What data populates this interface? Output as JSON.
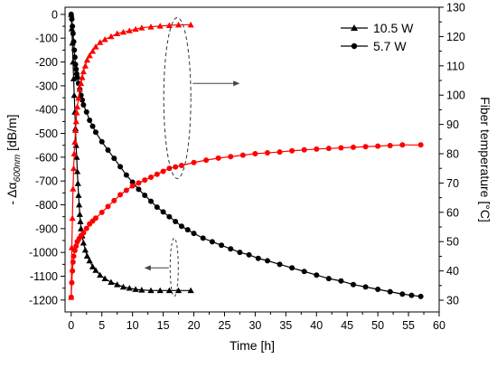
{
  "chart_data": {
    "type": "line",
    "x_axis": {
      "label": "Time [h]",
      "range": [
        -1,
        60
      ],
      "ticks": [
        "0",
        "5",
        "10",
        "15",
        "20",
        "25",
        "30",
        "35",
        "40",
        "45",
        "50",
        "55",
        "60"
      ]
    },
    "y_left_axis": {
      "label_prefix": "- Δα",
      "label_subscript": "600nm",
      "label_suffix": " [dB/m]",
      "range": [
        -1250,
        30
      ],
      "ticks": [
        "0",
        "-100",
        "-200",
        "-300",
        "-400",
        "-500",
        "-600",
        "-700",
        "-800",
        "-900",
        "-1000",
        "-1100",
        "-1200"
      ]
    },
    "y_right_axis": {
      "label": "Fiber temperature [°C]",
      "range": [
        26,
        130
      ],
      "ticks": [
        "30",
        "40",
        "50",
        "60",
        "70",
        "80",
        "90",
        "100",
        "110",
        "120",
        "130"
      ]
    },
    "legend": {
      "placement": "top-right",
      "entries": [
        {
          "label": "10.5 W",
          "marker": "triangle"
        },
        {
          "label": "5.7 W",
          "marker": "circle"
        }
      ]
    },
    "series": [
      {
        "name": "10.5 W",
        "quantity": "loss",
        "axis": "left",
        "color": "#000000",
        "marker": "triangle",
        "points": [
          [
            0,
            0
          ],
          [
            0.1,
            -60
          ],
          [
            0.2,
            -120
          ],
          [
            0.3,
            -200
          ],
          [
            0.4,
            -270
          ],
          [
            0.5,
            -340
          ],
          [
            0.6,
            -410
          ],
          [
            0.7,
            -480
          ],
          [
            0.8,
            -550
          ],
          [
            0.9,
            -600
          ],
          [
            1,
            -660
          ],
          [
            1.1,
            -710
          ],
          [
            1.2,
            -760
          ],
          [
            1.3,
            -800
          ],
          [
            1.4,
            -840
          ],
          [
            1.5,
            -870
          ],
          [
            1.6,
            -900
          ],
          [
            1.8,
            -930
          ],
          [
            2,
            -960
          ],
          [
            2.3,
            -990
          ],
          [
            2.6,
            -1015
          ],
          [
            3,
            -1035
          ],
          [
            3.5,
            -1060
          ],
          [
            4,
            -1075
          ],
          [
            4.7,
            -1095
          ],
          [
            5.5,
            -1110
          ],
          [
            6.5,
            -1125
          ],
          [
            7.5,
            -1135
          ],
          [
            8.5,
            -1145
          ],
          [
            9.5,
            -1150
          ],
          [
            10.5,
            -1155
          ],
          [
            11.5,
            -1158
          ],
          [
            13,
            -1160
          ],
          [
            14.5,
            -1160
          ],
          [
            16,
            -1160
          ],
          [
            17.5,
            -1160
          ],
          [
            19.5,
            -1160
          ]
        ]
      },
      {
        "name": "5.7 W",
        "quantity": "loss",
        "axis": "left",
        "color": "#000000",
        "marker": "circle",
        "points": [
          [
            0,
            0
          ],
          [
            0.1,
            -20
          ],
          [
            0.2,
            -50
          ],
          [
            0.3,
            -80
          ],
          [
            0.4,
            -115
          ],
          [
            0.5,
            -150
          ],
          [
            0.6,
            -180
          ],
          [
            0.7,
            -210
          ],
          [
            0.8,
            -230
          ],
          [
            0.9,
            -250
          ],
          [
            1,
            -265
          ],
          [
            1.2,
            -290
          ],
          [
            1.4,
            -315
          ],
          [
            1.6,
            -340
          ],
          [
            1.8,
            -360
          ],
          [
            2,
            -380
          ],
          [
            2.5,
            -410
          ],
          [
            3,
            -445
          ],
          [
            3.5,
            -470
          ],
          [
            4,
            -495
          ],
          [
            5,
            -535
          ],
          [
            6,
            -570
          ],
          [
            7,
            -605
          ],
          [
            8,
            -640
          ],
          [
            9,
            -675
          ],
          [
            10,
            -705
          ],
          [
            11,
            -735
          ],
          [
            12,
            -760
          ],
          [
            13,
            -785
          ],
          [
            14,
            -810
          ],
          [
            15,
            -830
          ],
          [
            16,
            -850
          ],
          [
            17,
            -870
          ],
          [
            18,
            -890
          ],
          [
            19,
            -905
          ],
          [
            20,
            -920
          ],
          [
            21.5,
            -940
          ],
          [
            23,
            -955
          ],
          [
            24.5,
            -970
          ],
          [
            26,
            -985
          ],
          [
            27.5,
            -1000
          ],
          [
            29,
            -1010
          ],
          [
            30.5,
            -1025
          ],
          [
            32,
            -1035
          ],
          [
            34,
            -1050
          ],
          [
            36,
            -1065
          ],
          [
            38,
            -1080
          ],
          [
            40,
            -1095
          ],
          [
            42,
            -1110
          ],
          [
            44,
            -1120
          ],
          [
            46,
            -1135
          ],
          [
            48,
            -1145
          ],
          [
            50,
            -1155
          ],
          [
            52,
            -1165
          ],
          [
            54,
            -1175
          ],
          [
            55.5,
            -1180
          ],
          [
            57,
            -1185
          ]
        ]
      },
      {
        "name": "10.5 W",
        "quantity": "temperature",
        "axis": "right",
        "color": "#ff0000",
        "marker": "triangle",
        "points": [
          [
            0,
            31
          ],
          [
            0.1,
            48
          ],
          [
            0.2,
            58
          ],
          [
            0.3,
            68
          ],
          [
            0.4,
            75
          ],
          [
            0.5,
            80
          ],
          [
            0.6,
            84
          ],
          [
            0.7,
            88
          ],
          [
            0.8,
            91
          ],
          [
            0.9,
            94
          ],
          [
            1,
            96
          ],
          [
            1.2,
            99
          ],
          [
            1.4,
            102
          ],
          [
            1.6,
            104
          ],
          [
            1.8,
            106
          ],
          [
            2,
            108
          ],
          [
            2.3,
            110
          ],
          [
            2.6,
            112
          ],
          [
            3,
            113.5
          ],
          [
            3.5,
            115
          ],
          [
            4,
            116.5
          ],
          [
            4.7,
            118
          ],
          [
            5.5,
            119
          ],
          [
            6.5,
            120
          ],
          [
            7.5,
            121
          ],
          [
            8.5,
            121.5
          ],
          [
            9.5,
            122
          ],
          [
            10.5,
            122.5
          ],
          [
            11.5,
            123
          ],
          [
            13,
            123.3
          ],
          [
            14.5,
            123.6
          ],
          [
            16,
            123.8
          ],
          [
            17.5,
            124
          ],
          [
            19.5,
            124
          ]
        ]
      },
      {
        "name": "5.7 W",
        "quantity": "temperature",
        "axis": "right",
        "color": "#ff0000",
        "marker": "circle",
        "points": [
          [
            0,
            31
          ],
          [
            0.1,
            36
          ],
          [
            0.2,
            40
          ],
          [
            0.3,
            43
          ],
          [
            0.4,
            45
          ],
          [
            0.6,
            47
          ],
          [
            0.8,
            48.5
          ],
          [
            1,
            50
          ],
          [
            1.3,
            51
          ],
          [
            1.6,
            52
          ],
          [
            2,
            53
          ],
          [
            2.5,
            54.5
          ],
          [
            3,
            56
          ],
          [
            3.5,
            57
          ],
          [
            4,
            58
          ],
          [
            5,
            60
          ],
          [
            6,
            62
          ],
          [
            7,
            64
          ],
          [
            8,
            66
          ],
          [
            9,
            67.5
          ],
          [
            10,
            69
          ],
          [
            11,
            70
          ],
          [
            12,
            71
          ],
          [
            13,
            72
          ],
          [
            14,
            73
          ],
          [
            15,
            74
          ],
          [
            16,
            75
          ],
          [
            17,
            75.5
          ],
          [
            18,
            76
          ],
          [
            20,
            77
          ],
          [
            22,
            77.8
          ],
          [
            24,
            78.5
          ],
          [
            26,
            79
          ],
          [
            28,
            79.5
          ],
          [
            30,
            80
          ],
          [
            32,
            80.3
          ],
          [
            34,
            80.6
          ],
          [
            36,
            81
          ],
          [
            38,
            81.3
          ],
          [
            40,
            81.6
          ],
          [
            42,
            81.8
          ],
          [
            44,
            82
          ],
          [
            46,
            82.2
          ],
          [
            48,
            82.4
          ],
          [
            50,
            82.6
          ],
          [
            52,
            82.8
          ],
          [
            54,
            83
          ],
          [
            57,
            83
          ]
        ]
      }
    ],
    "annotations": [
      {
        "type": "dashed-ellipse",
        "around": "temperature curves near x=17",
        "arrow": "right"
      },
      {
        "type": "dashed-ellipse",
        "around": "loss curves near x=17",
        "arrow": "left"
      }
    ]
  }
}
